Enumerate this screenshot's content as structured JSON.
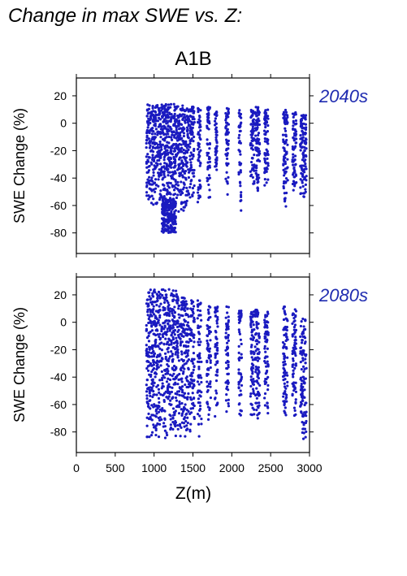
{
  "figure": {
    "title": "Change in max SWE vs. Z:",
    "scenario": "A1B",
    "xlabel": "Z(m)"
  },
  "colors": {
    "points": "#1a1ac0",
    "label": "#1f2bb0",
    "axis": "#000000"
  },
  "chart_data": [
    {
      "type": "scatter",
      "panel_label": "2040s",
      "ylabel": "SWE Change (%)",
      "xlim": [
        0,
        3000
      ],
      "ylim": [
        -95,
        33
      ],
      "x_ticks": [
        "0",
        "500",
        "1000",
        "1500",
        "2000",
        "2500",
        "3000"
      ],
      "y_ticks": [
        "20",
        "0",
        "-20",
        "-40",
        "-60",
        "-80"
      ],
      "grid": false,
      "clusters": [
        {
          "x": [
            900,
            1300
          ],
          "y": [
            -60,
            14
          ]
        },
        {
          "x": [
            1100,
            1280
          ],
          "y": [
            -80,
            -55
          ]
        },
        {
          "x": [
            1300,
            1450
          ],
          "y": [
            -65,
            13
          ]
        },
        {
          "x": [
            1460,
            1520
          ],
          "y": [
            -55,
            12
          ]
        },
        {
          "x": [
            1560,
            1600
          ],
          "y": [
            -60,
            12
          ]
        },
        {
          "x": [
            1680,
            1720
          ],
          "y": [
            -55,
            12
          ]
        },
        {
          "x": [
            1780,
            1810
          ],
          "y": [
            -40,
            12
          ]
        },
        {
          "x": [
            1920,
            1960
          ],
          "y": [
            -55,
            12
          ]
        },
        {
          "x": [
            2090,
            2120
          ],
          "y": [
            -65,
            12
          ]
        },
        {
          "x": [
            2240,
            2290
          ],
          "y": [
            -45,
            10
          ]
        },
        {
          "x": [
            2300,
            2360
          ],
          "y": [
            -50,
            12
          ]
        },
        {
          "x": [
            2420,
            2470
          ],
          "y": [
            -48,
            10
          ]
        },
        {
          "x": [
            2660,
            2720
          ],
          "y": [
            -62,
            10
          ]
        },
        {
          "x": [
            2780,
            2830
          ],
          "y": [
            -50,
            8
          ]
        },
        {
          "x": [
            2880,
            2960
          ],
          "y": [
            -58,
            6
          ]
        }
      ]
    },
    {
      "type": "scatter",
      "panel_label": "2080s",
      "ylabel": "SWE Change (%)",
      "xlim": [
        0,
        3000
      ],
      "ylim": [
        -95,
        33
      ],
      "x_ticks": [
        "0",
        "500",
        "1000",
        "1500",
        "2000",
        "2500",
        "3000"
      ],
      "y_ticks": [
        "20",
        "0",
        "-20",
        "-40",
        "-60",
        "-80"
      ],
      "grid": false,
      "clusters": [
        {
          "x": [
            900,
            1300
          ],
          "y": [
            -85,
            24
          ]
        },
        {
          "x": [
            1300,
            1450
          ],
          "y": [
            -85,
            18
          ]
        },
        {
          "x": [
            1460,
            1520
          ],
          "y": [
            -80,
            16
          ]
        },
        {
          "x": [
            1560,
            1610
          ],
          "y": [
            -85,
            16
          ]
        },
        {
          "x": [
            1680,
            1730
          ],
          "y": [
            -75,
            12
          ]
        },
        {
          "x": [
            1780,
            1820
          ],
          "y": [
            -70,
            12
          ]
        },
        {
          "x": [
            1920,
            1960
          ],
          "y": [
            -70,
            12
          ]
        },
        {
          "x": [
            2090,
            2130
          ],
          "y": [
            -70,
            10
          ]
        },
        {
          "x": [
            2240,
            2290
          ],
          "y": [
            -70,
            8
          ]
        },
        {
          "x": [
            2300,
            2360
          ],
          "y": [
            -72,
            10
          ]
        },
        {
          "x": [
            2420,
            2470
          ],
          "y": [
            -70,
            8
          ]
        },
        {
          "x": [
            2660,
            2720
          ],
          "y": [
            -72,
            12
          ]
        },
        {
          "x": [
            2780,
            2830
          ],
          "y": [
            -70,
            10
          ]
        },
        {
          "x": [
            2880,
            2960
          ],
          "y": [
            -88,
            4
          ]
        }
      ]
    }
  ]
}
